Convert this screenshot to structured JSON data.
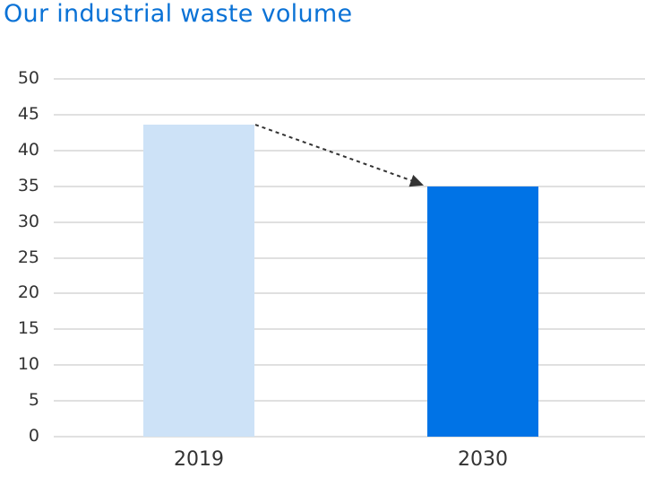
{
  "title": "Our industrial waste volume",
  "chart_data": {
    "type": "bar",
    "title": "Our industrial waste volume",
    "categories": [
      "2019",
      "2030"
    ],
    "values": [
      43.6,
      35
    ],
    "colors": [
      "#cde2f7",
      "#0073e6"
    ],
    "xlabel": "",
    "ylabel": "",
    "ylim": [
      0,
      50
    ],
    "yticks": [
      0,
      5,
      10,
      15,
      20,
      25,
      30,
      35,
      40,
      45,
      50
    ],
    "grid": true,
    "legend": null,
    "annotations": [
      {
        "type": "dashed-arrow",
        "from": "2019 bar top-right",
        "to": "2030 bar top-left"
      }
    ]
  },
  "colors": {
    "title": "#0a72d6",
    "bar_2019": "#cde2f7",
    "bar_2030": "#0073e6",
    "grid": "#e0e0e0",
    "text": "#333333"
  }
}
